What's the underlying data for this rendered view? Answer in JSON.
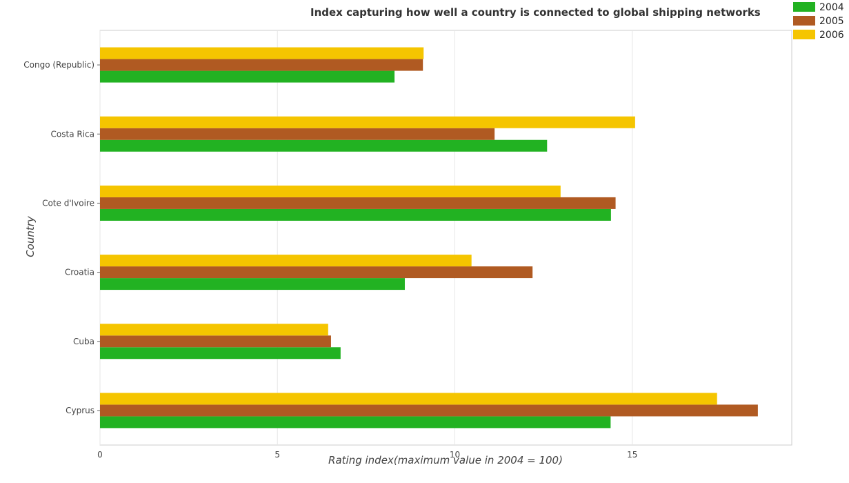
{
  "chart_data": {
    "type": "bar",
    "orientation": "horizontal",
    "title": "Index capturing how well a country is connected to global shipping networks",
    "xlabel": "Rating index(maximum value in 2004 = 100)",
    "ylabel": "Country",
    "xlim": [
      0,
      19.5
    ],
    "xticks": [
      0,
      5,
      10,
      15
    ],
    "grid": true,
    "legend_position": "top-right",
    "categories": [
      "Congo (Republic)",
      "Costa Rica",
      "Cote d'Ivoire",
      "Croatia",
      "Cuba",
      "Cyprus"
    ],
    "series": [
      {
        "name": "2004",
        "color": "#22b222",
        "values": [
          8.3,
          12.6,
          14.4,
          8.59,
          6.78,
          14.39
        ]
      },
      {
        "name": "2005",
        "color": "#b05a22",
        "values": [
          9.1,
          11.12,
          14.53,
          12.19,
          6.51,
          18.54
        ]
      },
      {
        "name": "2006",
        "color": "#f5c500",
        "values": [
          9.12,
          15.08,
          12.98,
          10.47,
          6.43,
          17.39
        ]
      }
    ]
  }
}
